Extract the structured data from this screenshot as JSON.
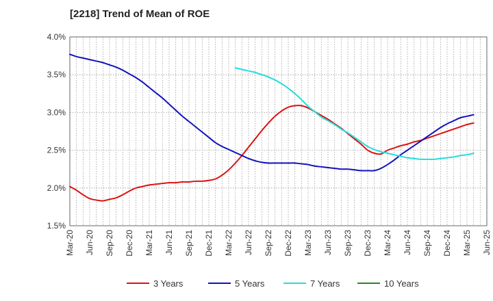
{
  "chart_data": {
    "type": "line",
    "title": "[2218]  Trend of Mean of ROE",
    "xlabel": "",
    "ylabel": "",
    "ylim": [
      1.5,
      4.0
    ],
    "yticks": [
      "1.5%",
      "2.0%",
      "2.5%",
      "3.0%",
      "3.5%",
      "4.0%"
    ],
    "x_tick_labels": [
      "Mar-20",
      "Jun-20",
      "Sep-20",
      "Dec-20",
      "Mar-21",
      "Jun-21",
      "Sep-21",
      "Dec-21",
      "Mar-22",
      "Jun-22",
      "Sep-22",
      "Dec-22",
      "Mar-23",
      "Jun-23",
      "Sep-23",
      "Dec-23",
      "Mar-24",
      "Jun-24",
      "Sep-24",
      "Dec-24",
      "Mar-25",
      "Jun-25"
    ],
    "grid": true,
    "legend_position": "bottom",
    "series": [
      {
        "name": "3 Years",
        "color": "#dd1111",
        "points": [
          [
            "Mar-20",
            2.02
          ],
          [
            "Apr-20",
            1.97
          ],
          [
            "May-20",
            1.91
          ],
          [
            "Jun-20",
            1.86
          ],
          [
            "Jul-20",
            1.84
          ],
          [
            "Aug-20",
            1.83
          ],
          [
            "Sep-20",
            1.85
          ],
          [
            "Oct-20",
            1.87
          ],
          [
            "Nov-20",
            1.91
          ],
          [
            "Dec-20",
            1.96
          ],
          [
            "Jan-21",
            2.0
          ],
          [
            "Feb-21",
            2.02
          ],
          [
            "Mar-21",
            2.04
          ],
          [
            "Apr-21",
            2.05
          ],
          [
            "May-21",
            2.06
          ],
          [
            "Jun-21",
            2.07
          ],
          [
            "Jul-21",
            2.07
          ],
          [
            "Aug-21",
            2.08
          ],
          [
            "Sep-21",
            2.08
          ],
          [
            "Oct-21",
            2.09
          ],
          [
            "Nov-21",
            2.09
          ],
          [
            "Dec-21",
            2.1
          ],
          [
            "Jan-22",
            2.12
          ],
          [
            "Feb-22",
            2.17
          ],
          [
            "Mar-22",
            2.24
          ],
          [
            "Apr-22",
            2.33
          ],
          [
            "May-22",
            2.43
          ],
          [
            "Jun-22",
            2.54
          ],
          [
            "Jul-22",
            2.65
          ],
          [
            "Aug-22",
            2.76
          ],
          [
            "Sep-22",
            2.86
          ],
          [
            "Oct-22",
            2.95
          ],
          [
            "Nov-22",
            3.02
          ],
          [
            "Dec-22",
            3.07
          ],
          [
            "Jan-23",
            3.09
          ],
          [
            "Feb-23",
            3.09
          ],
          [
            "Mar-23",
            3.06
          ],
          [
            "Apr-23",
            3.01
          ],
          [
            "May-23",
            2.96
          ],
          [
            "Jun-23",
            2.91
          ],
          [
            "Jul-23",
            2.85
          ],
          [
            "Aug-23",
            2.79
          ],
          [
            "Sep-23",
            2.72
          ],
          [
            "Oct-23",
            2.65
          ],
          [
            "Nov-23",
            2.58
          ],
          [
            "Dec-23",
            2.5
          ],
          [
            "Jan-24",
            2.46
          ],
          [
            "Feb-24",
            2.45
          ],
          [
            "Mar-24",
            2.5
          ],
          [
            "Apr-24",
            2.53
          ],
          [
            "May-24",
            2.56
          ],
          [
            "Jun-24",
            2.58
          ],
          [
            "Jul-24",
            2.61
          ],
          [
            "Aug-24",
            2.63
          ],
          [
            "Sep-24",
            2.66
          ],
          [
            "Oct-24",
            2.69
          ],
          [
            "Nov-24",
            2.72
          ],
          [
            "Dec-24",
            2.75
          ],
          [
            "Jan-25",
            2.78
          ],
          [
            "Feb-25",
            2.81
          ],
          [
            "Mar-25",
            2.84
          ],
          [
            "Apr-25",
            2.86
          ]
        ]
      },
      {
        "name": "5 Years",
        "color": "#1111bb",
        "points": [
          [
            "Mar-20",
            3.77
          ],
          [
            "Apr-20",
            3.74
          ],
          [
            "May-20",
            3.72
          ],
          [
            "Jun-20",
            3.7
          ],
          [
            "Jul-20",
            3.68
          ],
          [
            "Aug-20",
            3.66
          ],
          [
            "Sep-20",
            3.63
          ],
          [
            "Oct-20",
            3.6
          ],
          [
            "Nov-20",
            3.56
          ],
          [
            "Dec-20",
            3.51
          ],
          [
            "Jan-21",
            3.46
          ],
          [
            "Feb-21",
            3.4
          ],
          [
            "Mar-21",
            3.33
          ],
          [
            "Apr-21",
            3.26
          ],
          [
            "May-21",
            3.19
          ],
          [
            "Jun-21",
            3.11
          ],
          [
            "Jul-21",
            3.03
          ],
          [
            "Aug-21",
            2.95
          ],
          [
            "Sep-21",
            2.88
          ],
          [
            "Oct-21",
            2.81
          ],
          [
            "Nov-21",
            2.74
          ],
          [
            "Dec-21",
            2.67
          ],
          [
            "Jan-22",
            2.6
          ],
          [
            "Feb-22",
            2.55
          ],
          [
            "Mar-22",
            2.51
          ],
          [
            "Apr-22",
            2.47
          ],
          [
            "May-22",
            2.43
          ],
          [
            "Jun-22",
            2.39
          ],
          [
            "Jul-22",
            2.36
          ],
          [
            "Aug-22",
            2.34
          ],
          [
            "Sep-22",
            2.33
          ],
          [
            "Oct-22",
            2.33
          ],
          [
            "Nov-22",
            2.33
          ],
          [
            "Dec-22",
            2.33
          ],
          [
            "Jan-23",
            2.33
          ],
          [
            "Feb-23",
            2.32
          ],
          [
            "Mar-23",
            2.31
          ],
          [
            "Apr-23",
            2.29
          ],
          [
            "May-23",
            2.28
          ],
          [
            "Jun-23",
            2.27
          ],
          [
            "Jul-23",
            2.26
          ],
          [
            "Aug-23",
            2.25
          ],
          [
            "Sep-23",
            2.25
          ],
          [
            "Oct-23",
            2.24
          ],
          [
            "Nov-23",
            2.23
          ],
          [
            "Dec-23",
            2.23
          ],
          [
            "Jan-24",
            2.23
          ],
          [
            "Feb-24",
            2.26
          ],
          [
            "Mar-24",
            2.31
          ],
          [
            "Apr-24",
            2.37
          ],
          [
            "May-24",
            2.44
          ],
          [
            "Jun-24",
            2.5
          ],
          [
            "Jul-24",
            2.56
          ],
          [
            "Aug-24",
            2.62
          ],
          [
            "Sep-24",
            2.68
          ],
          [
            "Oct-24",
            2.74
          ],
          [
            "Nov-24",
            2.8
          ],
          [
            "Dec-24",
            2.85
          ],
          [
            "Jan-25",
            2.89
          ],
          [
            "Feb-25",
            2.93
          ],
          [
            "Mar-25",
            2.95
          ],
          [
            "Apr-25",
            2.97
          ]
        ]
      },
      {
        "name": "7 Years",
        "color": "#22dddd",
        "points": [
          [
            "Apr-22",
            3.59
          ],
          [
            "May-22",
            3.57
          ],
          [
            "Jun-22",
            3.55
          ],
          [
            "Jul-22",
            3.53
          ],
          [
            "Aug-22",
            3.5
          ],
          [
            "Sep-22",
            3.47
          ],
          [
            "Oct-22",
            3.43
          ],
          [
            "Nov-22",
            3.38
          ],
          [
            "Dec-22",
            3.32
          ],
          [
            "Jan-23",
            3.25
          ],
          [
            "Feb-23",
            3.17
          ],
          [
            "Mar-23",
            3.08
          ],
          [
            "Apr-23",
            3.01
          ],
          [
            "May-23",
            2.94
          ],
          [
            "Jun-23",
            2.89
          ],
          [
            "Jul-23",
            2.84
          ],
          [
            "Aug-23",
            2.78
          ],
          [
            "Sep-23",
            2.73
          ],
          [
            "Oct-23",
            2.67
          ],
          [
            "Nov-23",
            2.61
          ],
          [
            "Dec-23",
            2.55
          ],
          [
            "Jan-24",
            2.51
          ],
          [
            "Feb-24",
            2.48
          ],
          [
            "Mar-24",
            2.46
          ],
          [
            "Apr-24",
            2.44
          ],
          [
            "May-24",
            2.42
          ],
          [
            "Jun-24",
            2.4
          ],
          [
            "Jul-24",
            2.39
          ],
          [
            "Aug-24",
            2.38
          ],
          [
            "Sep-24",
            2.38
          ],
          [
            "Oct-24",
            2.38
          ],
          [
            "Nov-24",
            2.39
          ],
          [
            "Dec-24",
            2.4
          ],
          [
            "Jan-25",
            2.41
          ],
          [
            "Feb-25",
            2.43
          ],
          [
            "Mar-25",
            2.44
          ],
          [
            "Apr-25",
            2.46
          ]
        ]
      },
      {
        "name": "10 Years",
        "color": "#228822",
        "points": []
      }
    ]
  }
}
